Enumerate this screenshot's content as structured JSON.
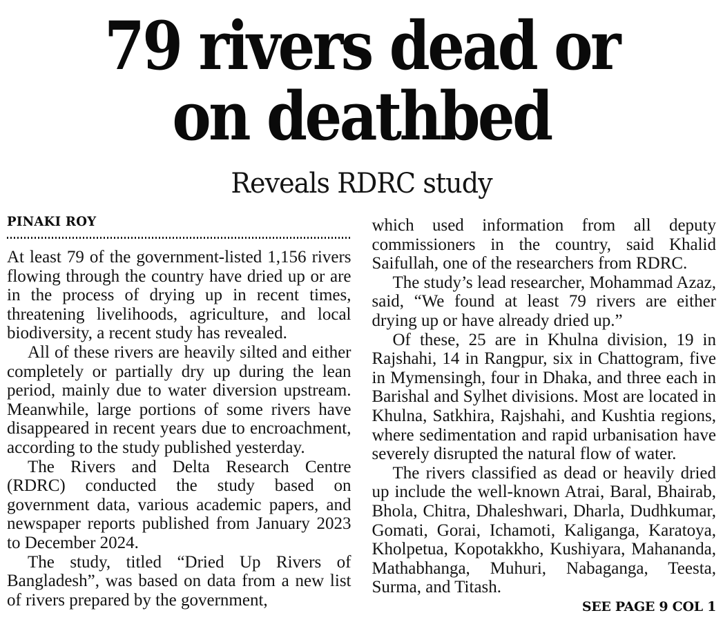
{
  "page": {
    "background": "#ffffff",
    "text_color": "#131313"
  },
  "article": {
    "headline_line1": "79 rivers dead or",
    "headline_line2": "on deathbed",
    "subheadline": "Reveals RDRC study",
    "byline": "PINAKI ROY",
    "columns": {
      "left": [
        "At least 79 of the government-listed 1,156 rivers flowing through the country have dried up or are in the process of drying up in recent times, threatening livelihoods, agriculture, and local biodiversity, a recent study has revealed.",
        "All of these rivers are heavily silted and either completely or partially dry up during the lean period, mainly due to water diversion upstream. Meanwhile, large portions of some rivers have disappeared in recent years due to encroachment, according to the study published yesterday.",
        "The Rivers and Delta Research Centre (RDRC) conducted the study based on government data, various academic papers, and newspaper reports published from January 2023 to December 2024.",
        "The study, titled “Dried Up Rivers of Bangladesh”, was based on data from a new list of rivers prepared by the government,"
      ],
      "right": [
        "which used information from all deputy commissioners in the country, said Khalid Saifullah, one of the researchers from RDRC.",
        "The study’s lead researcher, Mohammad Azaz, said, “We found at least 79 rivers are either drying up or have already dried up.”",
        "Of these, 25 are in Khulna division, 19 in Rajshahi, 14 in Rangpur, six in Chattogram, five in Mymensingh, four in Dhaka, and three each in Barishal and Sylhet divisions. Most are located in Khulna, Satkhira, Rajshahi, and Kushtia regions, where sedimentation and rapid urbanisation have severely disrupted the natural flow of water.",
        "The rivers classified as dead or heavily dried up include the well-known Atrai, Baral, Bhairab, Bhola, Chitra, Dhaleshwari, Dharla, Dudhkumar, Gomati, Gorai, Ichamoti, Kaliganga, Karatoya, Kholpetua, Kopotakkho, Kushiyara, Mahananda, Mathabhanga, Muhuri, Nabaganga, Teesta, Surma, and Titash."
      ]
    },
    "continuation": "SEE PAGE 9 COL 1"
  }
}
